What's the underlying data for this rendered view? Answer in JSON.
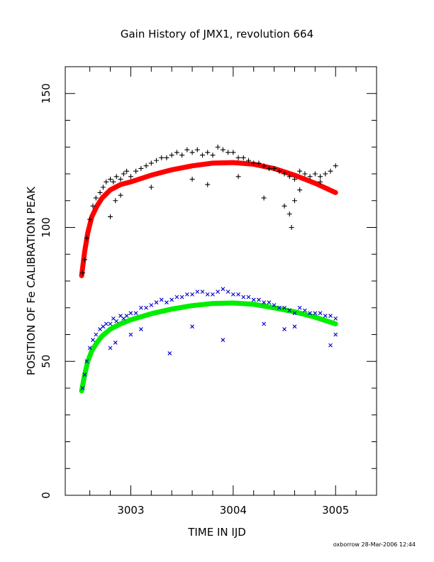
{
  "chart_data": {
    "type": "scatter",
    "title": "Gain History of JMX1, revolution 664",
    "xlabel": "TIME IN IJD",
    "ylabel": "POSITION OF Fe CALIBRATION PEAK",
    "xlim": [
      3002.36,
      3005.4
    ],
    "ylim": [
      0,
      160
    ],
    "xticks": [
      3003,
      3004,
      3005
    ],
    "yticks": [
      0,
      50,
      100,
      150
    ],
    "grid": false,
    "legend": "none",
    "series": [
      {
        "marker": "plus",
        "color": "#000000",
        "x": [
          3002.53,
          3002.55,
          3002.57,
          3002.6,
          3002.63,
          3002.66,
          3002.7,
          3002.73,
          3002.76,
          3002.8,
          3002.83,
          3002.86,
          3002.9,
          3002.93,
          3002.96,
          3003.0,
          3003.05,
          3003.1,
          3003.15,
          3003.2,
          3003.25,
          3003.3,
          3003.35,
          3003.4,
          3003.45,
          3003.5,
          3003.55,
          3003.6,
          3003.65,
          3003.7,
          3003.75,
          3003.8,
          3003.85,
          3003.9,
          3003.95,
          3004.0,
          3004.05,
          3004.1,
          3004.15,
          3004.2,
          3004.25,
          3004.3,
          3004.35,
          3004.4,
          3004.45,
          3004.5,
          3004.55,
          3004.6,
          3004.65,
          3004.7,
          3004.75,
          3004.8,
          3004.85,
          3004.9,
          3004.95,
          3005.0,
          3002.8,
          3002.85,
          3002.9,
          3003.2,
          3003.6,
          3003.75,
          3004.05,
          3004.3,
          3004.5,
          3004.55,
          3004.57,
          3004.6,
          3004.65,
          3004.85
        ],
        "y": [
          83,
          88,
          96,
          103,
          108,
          111,
          113,
          115,
          117,
          118,
          117,
          119,
          118,
          120,
          121,
          119,
          121,
          122,
          123,
          124,
          125,
          126,
          126,
          127,
          128,
          127,
          129,
          128,
          129,
          127,
          128,
          127,
          130,
          129,
          128,
          128,
          126,
          126,
          125,
          124,
          124,
          123,
          122,
          122,
          121,
          120,
          119,
          118,
          121,
          120,
          119,
          120,
          119,
          120,
          121,
          123,
          104,
          110,
          112,
          115,
          118,
          116,
          119,
          111,
          108,
          105,
          100,
          110,
          114,
          117
        ]
      },
      {
        "marker": "x",
        "color": "#0000cc",
        "x": [
          3002.53,
          3002.55,
          3002.57,
          3002.6,
          3002.63,
          3002.66,
          3002.7,
          3002.73,
          3002.76,
          3002.8,
          3002.83,
          3002.86,
          3002.9,
          3002.93,
          3002.96,
          3003.0,
          3003.05,
          3003.1,
          3003.15,
          3003.2,
          3003.25,
          3003.3,
          3003.35,
          3003.4,
          3003.45,
          3003.5,
          3003.55,
          3003.6,
          3003.65,
          3003.7,
          3003.75,
          3003.8,
          3003.85,
          3003.9,
          3003.95,
          3004.0,
          3004.05,
          3004.1,
          3004.15,
          3004.2,
          3004.25,
          3004.3,
          3004.35,
          3004.4,
          3004.45,
          3004.5,
          3004.55,
          3004.6,
          3004.65,
          3004.7,
          3004.75,
          3004.8,
          3004.85,
          3004.9,
          3004.95,
          3005.0,
          3002.8,
          3002.85,
          3003.0,
          3003.1,
          3003.38,
          3003.6,
          3003.9,
          3004.3,
          3004.5,
          3004.6,
          3004.95,
          3005.0
        ],
        "y": [
          40,
          45,
          50,
          55,
          58,
          60,
          62,
          63,
          64,
          64,
          66,
          65,
          67,
          66,
          67,
          68,
          68,
          70,
          70,
          71,
          72,
          73,
          72,
          73,
          74,
          74,
          75,
          75,
          76,
          76,
          75,
          75,
          76,
          77,
          76,
          75,
          75,
          74,
          74,
          73,
          73,
          72,
          72,
          71,
          70,
          70,
          69,
          68,
          70,
          69,
          68,
          68,
          68,
          67,
          67,
          66,
          55,
          57,
          60,
          62,
          53,
          63,
          58,
          64,
          62,
          63,
          56,
          60
        ]
      }
    ],
    "fits": [
      {
        "color": "#ff0000",
        "x": [
          3002.52,
          3002.55,
          3002.58,
          3002.62,
          3002.67,
          3002.72,
          3002.8,
          3002.9,
          3003.0,
          3003.2,
          3003.4,
          3003.6,
          3003.8,
          3004.0,
          3004.2,
          3004.4,
          3004.6,
          3004.8,
          3005.0
        ],
        "y": [
          82,
          91,
          98,
          104,
          108,
          111,
          114,
          116,
          117,
          119.5,
          121.5,
          123,
          124,
          124.2,
          123.6,
          122,
          119.5,
          116.5,
          113
        ]
      },
      {
        "color": "#00ee00",
        "x": [
          3002.52,
          3002.55,
          3002.58,
          3002.62,
          3002.67,
          3002.72,
          3002.8,
          3002.9,
          3003.0,
          3003.2,
          3003.4,
          3003.6,
          3003.8,
          3004.0,
          3004.2,
          3004.4,
          3004.6,
          3004.8,
          3005.0
        ],
        "y": [
          39,
          45,
          50,
          54,
          57,
          59.5,
          62,
          64,
          65.5,
          67.8,
          69.5,
          70.8,
          71.6,
          71.8,
          71.3,
          70,
          68.5,
          66.5,
          64
        ]
      }
    ]
  },
  "footer_text": "oxborrow 28-Mar-2006 12:44"
}
